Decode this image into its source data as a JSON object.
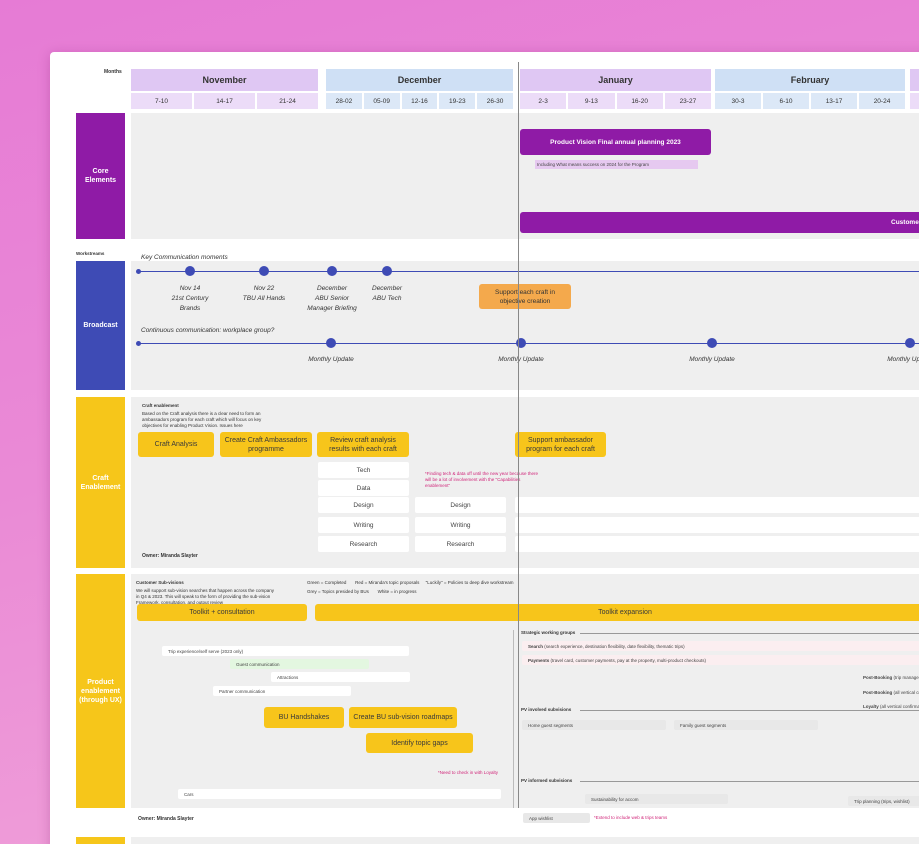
{
  "labels": {
    "months": "Months",
    "workstreams": "Workstreams"
  },
  "months": [
    {
      "name": "November",
      "weeks": [
        "7-10",
        "14-17",
        "21-24"
      ]
    },
    {
      "name": "December",
      "weeks": [
        "28-02",
        "05-09",
        "12-16",
        "19-23",
        "26-30"
      ]
    },
    {
      "name": "January",
      "weeks": [
        "2-3",
        "9-13",
        "16-20",
        "23-27"
      ]
    },
    {
      "name": "February",
      "weeks": [
        "30-3",
        "6-10",
        "13-17",
        "20-24"
      ]
    }
  ],
  "core": {
    "label": "Core Elements",
    "vision": "Product Vision Final annual planning 2023",
    "vision_note": "Including What means success on 2024 for the Program",
    "bar": "Customer"
  },
  "broadcast": {
    "label": "Broadcast",
    "key_title": "Key Communication moments",
    "moments": [
      [
        "Nov 14",
        "21st Century",
        "Brands"
      ],
      [
        "Nov 22",
        "TBU All Hands"
      ],
      [
        "December",
        "ABU Senior",
        "Manager Briefing"
      ],
      [
        "December",
        "ABU Tech"
      ]
    ],
    "support": "Support each craft in objective creation",
    "continuous_title": "Continuous  communication: workplace group?",
    "updates": [
      "Monthly Update",
      "Monthly Update",
      "Monthly Update",
      "Monthly Update"
    ]
  },
  "craft": {
    "label": "Craft Enablement",
    "title": "Craft enablement",
    "intro": "Based on the Craft analysis there is a clear need to form an ambassadors program for each craft which will focus on key objectives for enabling Product Vision. Issues here",
    "steps": [
      "Craft Analysis",
      "Create Craft Ambassadors programme",
      "Review craft analysis results with each craft",
      "Support ambassador program for each craft"
    ],
    "crafts": [
      "Tech",
      "Data",
      "Design",
      "Writing",
      "Research"
    ],
    "crafts2": [
      "Design",
      "Writing",
      "Research"
    ],
    "note": "*Finding tech & data off until the new year because there will be a lot of involvement with the \"Capabilities enablement\"",
    "owner": "Owner: Miranda Slayter"
  },
  "product": {
    "label": "Product enablement (through UX)",
    "title": "Customer Sub-visions",
    "intro": "We will support sub-vision searches that happen across the company in Q4 & 2023. This will speak to the form of providing the sub-vision Framework, consultation, and output review",
    "legend1": "Green = Completed       Red = Miranda's topic proposals     \"Luckily\" = Policies to deep dive workstream",
    "legend2": "Grey = Topics presided by BUs       White = in progress",
    "toolkit": "Toolkit + consultation",
    "expansion": "Toolkit  expansion",
    "left_rows": [
      "Trip experience/self serve (2023 only)",
      "Guest communication",
      "Attractions",
      "Partner communication"
    ],
    "actions": [
      "BU Handshakes",
      "Create BU sub-vision roadmaps",
      "Identify topic gaps"
    ],
    "check_note": "*Need to check in with Loyalty",
    "cars": "Cars",
    "owner": "Owner: Miranda Slayter",
    "strategic_title": "Strategic working groups",
    "strategic": [
      {
        "name": "Search",
        "detail": " (search experience, destination flexibility, date flexibility, thematic trips)"
      },
      {
        "name": "Payments",
        "detail": " (travel card, customer payments, pay at the property, multi-product checkouts)"
      },
      {
        "name": "Post-Booking",
        "detail": " (trip management"
      },
      {
        "name": "Post-Booking",
        "detail": " (all vertical cro"
      },
      {
        "name": "Loyalty",
        "detail": " (all vertical confirma"
      }
    ],
    "involved_title": "PV involved subvisions",
    "involved": [
      "Home guest segments",
      "Family guest segments"
    ],
    "informed_title": "PV informed subvisions",
    "informed": [
      "Sustainability for accom",
      "Trip planning (trips, wishlist)",
      "App wishlist"
    ],
    "extend_note": "*Extend to include web & trips teams"
  }
}
